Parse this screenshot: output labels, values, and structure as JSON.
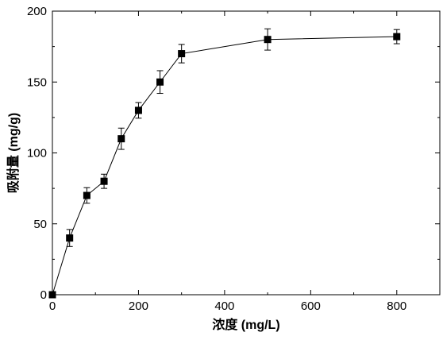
{
  "chart_data": {
    "type": "line",
    "title": "",
    "xlabel": "浓度 (mg/L)",
    "ylabel": "吸附量 (mg/g)",
    "xlim": [
      0,
      900
    ],
    "ylim": [
      0,
      200
    ],
    "x_ticks": [
      0,
      200,
      400,
      600,
      800
    ],
    "y_ticks": [
      0,
      50,
      100,
      150,
      200
    ],
    "grid": false,
    "legend": "none",
    "marker": "square",
    "color": "#000000",
    "series": [
      {
        "x": [
          0,
          40,
          80,
          120,
          160,
          200,
          250,
          300,
          500,
          800
        ],
        "y": [
          0,
          40,
          70,
          80,
          110,
          130,
          150,
          170,
          180,
          182
        ],
        "error": [
          0,
          6,
          5.5,
          5,
          7.5,
          5.5,
          8,
          6.5,
          7.5,
          5
        ]
      }
    ]
  }
}
